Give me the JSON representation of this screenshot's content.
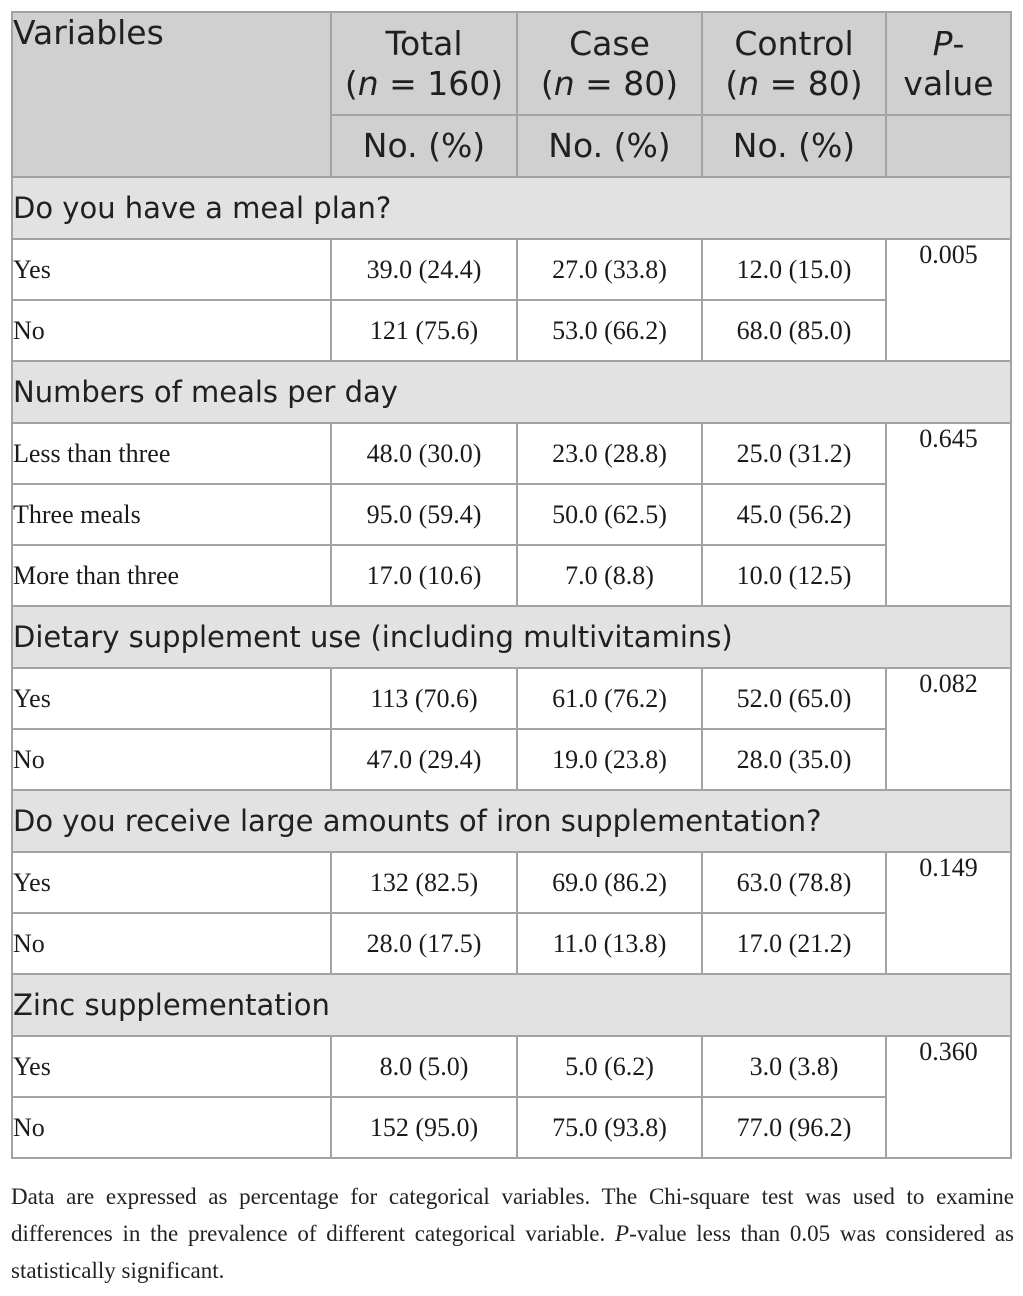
{
  "header": {
    "variables": "Variables",
    "total": {
      "title": "Total",
      "n_open": "(",
      "n_sym": "n",
      "n_rest": " = 160)"
    },
    "case": {
      "title": "Case",
      "n_open": "(",
      "n_sym": "n",
      "n_rest": " = 80)"
    },
    "control": {
      "title": "Control",
      "n_open": "(",
      "n_sym": "n",
      "n_rest": " = 80)"
    },
    "pvalue": {
      "p": "P",
      "dash": "-",
      "value": "value"
    },
    "subheader": "No. (%)"
  },
  "sections": [
    {
      "title": "Do you have a meal plan?",
      "pvalue": "0.005",
      "rows": [
        {
          "label": "Yes",
          "total": "39.0 (24.4)",
          "case": "27.0 (33.8)",
          "control": "12.0 (15.0)"
        },
        {
          "label": "No",
          "total": "121 (75.6)",
          "case": "53.0 (66.2)",
          "control": "68.0 (85.0)"
        }
      ]
    },
    {
      "title": "Numbers of meals per day",
      "pvalue": "0.645",
      "rows": [
        {
          "label": "Less than three",
          "total": "48.0 (30.0)",
          "case": "23.0 (28.8)",
          "control": "25.0 (31.2)"
        },
        {
          "label": "Three meals",
          "total": "95.0 (59.4)",
          "case": "50.0 (62.5)",
          "control": "45.0 (56.2)"
        },
        {
          "label": "More than three",
          "total": "17.0 (10.6)",
          "case": "7.0 (8.8)",
          "control": "10.0 (12.5)"
        }
      ]
    },
    {
      "title": "Dietary supplement use (including multivitamins)",
      "pvalue": "0.082",
      "rows": [
        {
          "label": "Yes",
          "total": "113 (70.6)",
          "case": "61.0 (76.2)",
          "control": "52.0 (65.0)"
        },
        {
          "label": "No",
          "total": "47.0 (29.4)",
          "case": "19.0 (23.8)",
          "control": "28.0 (35.0)"
        }
      ]
    },
    {
      "title": "Do you receive large amounts of iron supplementation?",
      "pvalue": "0.149",
      "rows": [
        {
          "label": "Yes",
          "total": "132 (82.5)",
          "case": "69.0 (86.2)",
          "control": "63.0 (78.8)"
        },
        {
          "label": "No",
          "total": "28.0 (17.5)",
          "case": "11.0 (13.8)",
          "control": "17.0 (21.2)"
        }
      ]
    },
    {
      "title": "Zinc supplementation",
      "pvalue": "0.360",
      "rows": [
        {
          "label": "Yes",
          "total": "8.0 (5.0)",
          "case": "5.0 (6.2)",
          "control": "3.0 (3.8)"
        },
        {
          "label": "No",
          "total": "152 (95.0)",
          "case": "75.0 (93.8)",
          "control": "77.0 (96.2)"
        }
      ]
    }
  ],
  "footnote": {
    "part1": "Data are expressed as percentage for categorical variables. The Chi-square test was used to examine differences in the prevalence of different categorical variable. ",
    "p": "P",
    "part2": "-value less than 0.05 was considered as statistically significant."
  }
}
